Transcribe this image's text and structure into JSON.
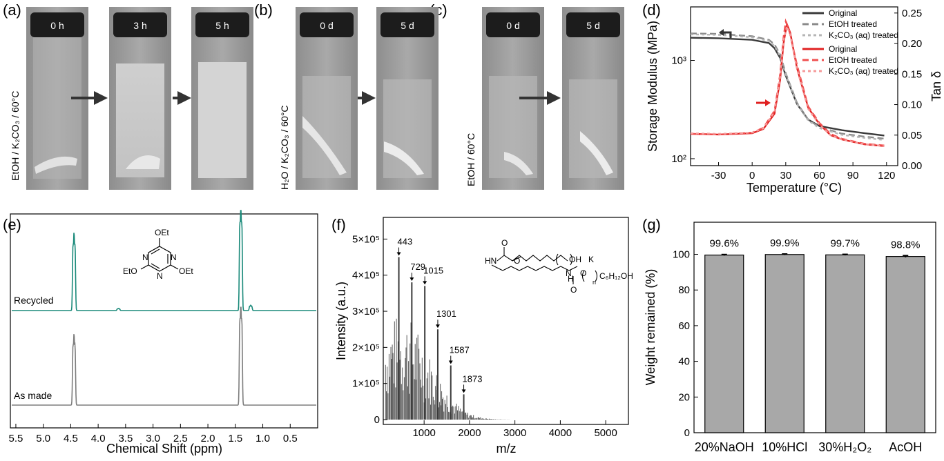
{
  "panels": {
    "a": {
      "label": "(a)",
      "side_label": "EtOH / K₂CO₃ / 60°C",
      "vials": [
        "0 h",
        "3 h",
        "5 h"
      ]
    },
    "b": {
      "label": "(b)",
      "side_label": "H₂O / K₂CO₃ / 60°C",
      "vials": [
        "0 d",
        "5 d"
      ]
    },
    "c": {
      "label": "(c)",
      "side_label": "EtOH / 60°C",
      "vials": [
        "0 d",
        "5 d"
      ]
    },
    "d": {
      "label": "(d)"
    },
    "e": {
      "label": "(e)"
    },
    "f": {
      "label": "(f)"
    },
    "g": {
      "label": "(g)"
    }
  },
  "colors": {
    "glass": "#9a9a9a",
    "cap": "#1c1c1c",
    "teal": "#1a8a7a",
    "gray_trace": "#7d7d7d",
    "bar": "#a8a8a8",
    "red": "#e23a3a"
  },
  "chart_data": [
    {
      "id": "d",
      "type": "line",
      "xlabel": "Temperature (°C)",
      "ylabel": "Storage Modulus (MPa)",
      "y2label": "Tan δ",
      "x_ticks": [
        "-30",
        "0",
        "30",
        "60",
        "90",
        "120"
      ],
      "y_ticks": [
        "10²",
        "10³"
      ],
      "y_scale": "log",
      "y2_ticks": [
        "0.00",
        "0.05",
        "0.10",
        "0.15",
        "0.20",
        "0.25"
      ],
      "xlim": [
        -55,
        130
      ],
      "ylim": [
        85,
        3500
      ],
      "y2lim": [
        0,
        0.26
      ],
      "legend": [
        "Original",
        "EtOH treated",
        "K₂CO₃ (aq) treated",
        "Original",
        "EtOH treated",
        "K₂CO₃ (aq) treated"
      ],
      "series": [
        {
          "name": "Original",
          "axis": "left",
          "color": "#3a3a3a",
          "dash": "solid",
          "x": [
            -55,
            -30,
            0,
            15,
            20,
            25,
            30,
            40,
            50,
            60,
            80,
            100,
            118
          ],
          "y": [
            1700,
            1680,
            1620,
            1500,
            1330,
            1060,
            700,
            360,
            250,
            215,
            195,
            182,
            172
          ]
        },
        {
          "name": "EtOH treated",
          "axis": "left",
          "color": "#8a8a8a",
          "dash": "long",
          "x": [
            -55,
            -30,
            0,
            15,
            20,
            25,
            30,
            40,
            50,
            60,
            80,
            100,
            118
          ],
          "y": [
            1880,
            1860,
            1760,
            1620,
            1450,
            1150,
            740,
            370,
            250,
            210,
            180,
            168,
            160
          ]
        },
        {
          "name": "K₂CO₃ (aq) treated",
          "axis": "left",
          "color": "#b5b5b5",
          "dash": "short",
          "x": [
            -55,
            -30,
            0,
            15,
            20,
            25,
            30,
            40,
            50,
            60,
            80,
            100,
            118
          ],
          "y": [
            1840,
            1820,
            1720,
            1580,
            1400,
            1100,
            720,
            360,
            245,
            205,
            175,
            163,
            155
          ]
        },
        {
          "name": "Original",
          "axis": "right",
          "color": "#e02020",
          "dash": "solid",
          "x": [
            -55,
            -30,
            0,
            10,
            20,
            25,
            28,
            31,
            34,
            40,
            50,
            60,
            70,
            80,
            100,
            118
          ],
          "y": [
            0.052,
            0.051,
            0.053,
            0.06,
            0.085,
            0.14,
            0.2,
            0.232,
            0.218,
            0.16,
            0.095,
            0.068,
            0.05,
            0.043,
            0.035,
            0.032
          ]
        },
        {
          "name": "EtOH treated",
          "axis": "right",
          "color": "#f05050",
          "dash": "long",
          "x": [
            -55,
            -30,
            0,
            10,
            20,
            25,
            28,
            30,
            33,
            40,
            50,
            60,
            70,
            80,
            100,
            118
          ],
          "y": [
            0.052,
            0.051,
            0.054,
            0.062,
            0.09,
            0.15,
            0.21,
            0.236,
            0.222,
            0.165,
            0.097,
            0.07,
            0.052,
            0.044,
            0.036,
            0.033
          ]
        },
        {
          "name": "K₂CO₃ (aq) treated",
          "axis": "right",
          "color": "#f59a9a",
          "dash": "short",
          "x": [
            -55,
            -30,
            0,
            10,
            20,
            25,
            28,
            31,
            34,
            40,
            50,
            60,
            70,
            80,
            100,
            118
          ],
          "y": [
            0.053,
            0.052,
            0.054,
            0.061,
            0.088,
            0.145,
            0.205,
            0.228,
            0.215,
            0.158,
            0.093,
            0.067,
            0.05,
            0.043,
            0.035,
            0.032
          ]
        }
      ]
    },
    {
      "id": "e",
      "type": "line",
      "xlabel": "Chemical Shift (ppm)",
      "x_ticks": [
        "5.5",
        "5.0",
        "4.5",
        "4.0",
        "3.5",
        "3.0",
        "2.5",
        "2.0",
        "1.5",
        "1.0",
        "0.5"
      ],
      "xlim": [
        5.6,
        0.0
      ],
      "traces": [
        {
          "name": "Recycled",
          "color": "#1a8a7a",
          "peaks": [
            {
              "ppm": 4.44,
              "h": 0.75
            },
            {
              "ppm": 1.4,
              "h": 1.0
            },
            {
              "ppm": 3.63,
              "h": 0.02
            },
            {
              "ppm": 1.22,
              "h": 0.05
            }
          ]
        },
        {
          "name": "As made",
          "color": "#7d7d7d",
          "peaks": [
            {
              "ppm": 4.44,
              "h": 0.7
            },
            {
              "ppm": 1.4,
              "h": 1.0
            }
          ]
        }
      ],
      "structure_labels": [
        "OEt",
        "EtO",
        "OEt",
        "N",
        "N",
        "N"
      ]
    },
    {
      "id": "f",
      "type": "bar",
      "xlabel": "m/z",
      "ylabel": "Intensity (a.u.)",
      "x_ticks": [
        "1000",
        "2000",
        "3000",
        "4000",
        "5000"
      ],
      "y_ticks": [
        "0",
        "1×10⁵",
        "2×10⁵",
        "3×10⁵",
        "4×10⁵",
        "5×10⁵"
      ],
      "xlim": [
        100,
        5500
      ],
      "ylim": [
        0,
        560000
      ],
      "annotated_peaks": [
        {
          "label": "443",
          "x": 443,
          "y": 450000
        },
        {
          "label": "729",
          "x": 729,
          "y": 380000
        },
        {
          "label": "1015",
          "x": 1015,
          "y": 370000
        },
        {
          "label": "1301",
          "x": 1301,
          "y": 250000
        },
        {
          "label": "1587",
          "x": 1587,
          "y": 150000
        },
        {
          "label": "1873",
          "x": 1873,
          "y": 70000
        }
      ],
      "structure_labels": [
        "HN",
        "O",
        "O",
        "OH",
        "K",
        "N",
        "H",
        "O",
        "n",
        "C₆H₁₂OH",
        "O"
      ]
    },
    {
      "id": "g",
      "type": "bar",
      "categories": [
        "20%NaOH",
        "10%HCl",
        "30%H₂O₂",
        "AcOH"
      ],
      "values": [
        99.6,
        99.9,
        99.7,
        98.8
      ],
      "value_labels": [
        "99.6%",
        "99.9%",
        "99.7%",
        "98.8%"
      ],
      "errors": [
        0.3,
        0.3,
        0.3,
        0.5
      ],
      "ylabel": "Weight remained (%)",
      "y_ticks": [
        "0",
        "20",
        "40",
        "60",
        "80",
        "100"
      ],
      "ylim": [
        0,
        118
      ]
    }
  ]
}
